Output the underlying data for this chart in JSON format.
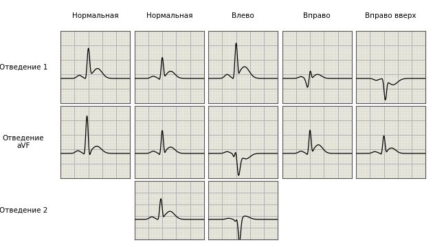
{
  "bg_color": "#ffffff",
  "border_color": "#2020cc",
  "panel_bg": "#e8e8dc",
  "grid_major_color": "#aaaaaa",
  "grid_minor_color": "#cccccc",
  "ecg_color": "#000000",
  "col_labels": [
    "Нормальная",
    "Нормальная",
    "Влево",
    "Вправо",
    "Вправо вверх"
  ],
  "row_labels": [
    "Отведение 1",
    "Отведение\naVF",
    "Отведение 2"
  ],
  "title_fontsize": 7.5,
  "label_fontsize": 7.5,
  "existing_cells": {
    "0": [
      0,
      1,
      2,
      3,
      4
    ],
    "1": [
      0,
      1,
      2,
      3,
      4
    ],
    "2": [
      1,
      2
    ]
  }
}
